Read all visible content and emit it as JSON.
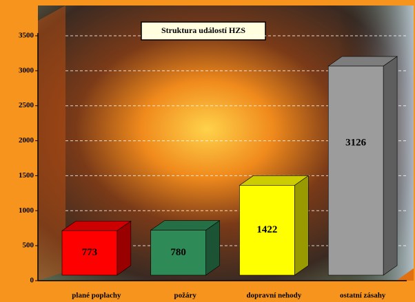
{
  "chart_data": {
    "type": "bar",
    "title": "Struktura událostí HZS",
    "categories": [
      "plané poplachy",
      "požáry",
      "dopravní nehody",
      "ostatní zásahy"
    ],
    "values": [
      773,
      780,
      1422,
      3126
    ],
    "colors": [
      "#ff0000",
      "#2e8b57",
      "#ffff00",
      "#9c9c9c"
    ],
    "ylim": [
      0,
      3500
    ],
    "yticks": [
      0,
      500,
      1000,
      1500,
      2000,
      2500,
      3000,
      3500
    ],
    "grid": true
  }
}
